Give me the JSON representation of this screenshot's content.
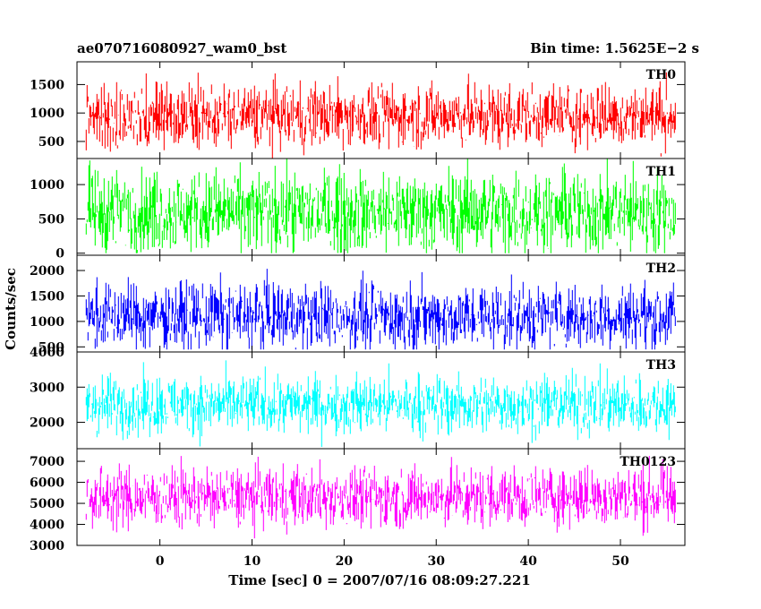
{
  "chart_data": {
    "type": "line",
    "title_left": "ae070716080927_wam0_bst",
    "title_right": "Bin time: 1.5625E−2 s",
    "xlabel": "Time [sec] 0 = 2007/07/16 08:09:27.221",
    "ylabel": "Counts/sec",
    "xlim": [
      -9,
      57
    ],
    "data_xrange": [
      -8,
      56
    ],
    "xticks": [
      0,
      10,
      20,
      30,
      40,
      50
    ],
    "grid": false,
    "panels": [
      {
        "name": "TH0",
        "color": "#ff0000",
        "ylim": [
          200,
          1900
        ],
        "yticks": [
          500,
          1000,
          1500
        ],
        "base": 950,
        "spread": 280,
        "ymin": 200,
        "ymax": 1850
      },
      {
        "name": "TH1",
        "color": "#00ff00",
        "ylim": [
          -30,
          1380
        ],
        "yticks": [
          0,
          500,
          1000
        ],
        "base": 600,
        "spread": 300,
        "ymin": 0,
        "ymax": 1380
      },
      {
        "name": "TH2",
        "color": "#0000ff",
        "ylim": [
          400,
          2300
        ],
        "yticks": [
          500,
          1000,
          1500,
          2000
        ],
        "base": 1100,
        "spread": 330,
        "ymin": 450,
        "ymax": 2300
      },
      {
        "name": "TH3",
        "color": "#00ffff",
        "ylim": [
          1250,
          4000
        ],
        "yticks": [
          2000,
          3000,
          4000
        ],
        "base": 2500,
        "spread": 420,
        "ymin": 1300,
        "ymax": 4000
      },
      {
        "name": "TH0123",
        "color": "#ff00ff",
        "ylim": [
          3000,
          7600
        ],
        "yticks": [
          3000,
          4000,
          5000,
          6000,
          7000
        ],
        "base": 5300,
        "spread": 720,
        "ymin": 3100,
        "ymax": 7600
      }
    ]
  }
}
